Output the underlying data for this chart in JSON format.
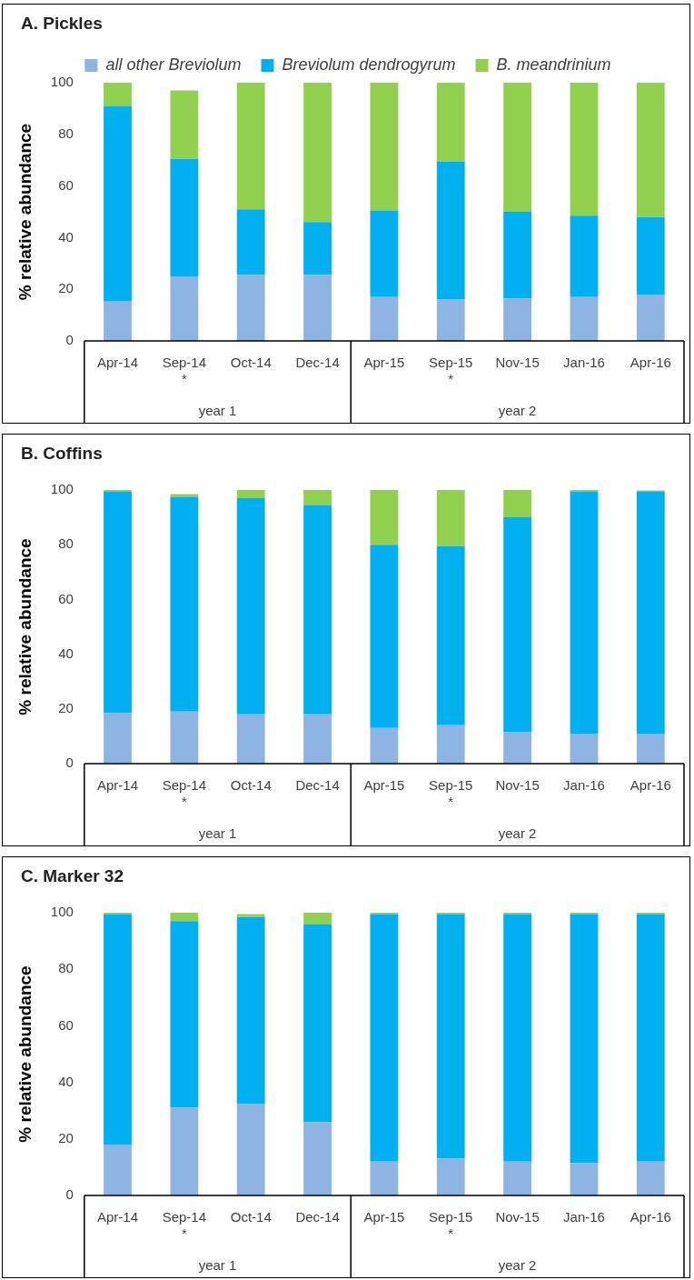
{
  "chart_data": [
    {
      "type": "bar",
      "title": "A. Pickles",
      "ylabel": "% relative abundance",
      "stacked": true,
      "legend": "top",
      "grid": false,
      "categories": [
        "Apr-14",
        "Sep-14\n*",
        "Oct-14",
        "Dec-14",
        "Apr-15",
        "Sep-15\n*",
        "Nov-15",
        "Jan-16",
        "Apr-16"
      ],
      "series": [
        {
          "name": "all other Breviolum",
          "color": "#8eb4e3",
          "values": [
            15.5,
            25,
            25.5,
            25.5,
            17,
            16,
            16.5,
            17,
            18
          ]
        },
        {
          "name": "Breviolum dendrogyrum",
          "color": "#00b0f0",
          "values": [
            75.5,
            45.5,
            25.5,
            20.5,
            33.5,
            53.5,
            33.5,
            31.5,
            30
          ]
        },
        {
          "name": "B. meandrinium",
          "color": "#92d050",
          "values": [
            9,
            26.5,
            49,
            54,
            49.5,
            30.5,
            50,
            51.5,
            52
          ]
        }
      ],
      "ylim": [
        0,
        100
      ],
      "yticks": [
        0,
        20,
        40,
        60,
        80,
        100
      ],
      "annotations": [
        "year 1",
        "year 2"
      ]
    },
    {
      "type": "bar",
      "title": "B. Coffins",
      "ylabel": "% relative abundance",
      "stacked": true,
      "grid": false,
      "categories": [
        "Apr-14",
        "Sep-14\n*",
        "Oct-14",
        "Dec-14",
        "Apr-15",
        "Sep-15\n*",
        "Nov-15",
        "Jan-16",
        "Apr-16"
      ],
      "series": [
        {
          "color": "#8eb4e3",
          "values": [
            18.5,
            19,
            18,
            18,
            13,
            14,
            11.5,
            11,
            11
          ]
        },
        {
          "color": "#00b0f0",
          "values": [
            81,
            78.5,
            79,
            76.5,
            67,
            65.5,
            78.5,
            88.5,
            88.5
          ]
        },
        {
          "color": "#92d050",
          "values": [
            0.5,
            1,
            3,
            5.5,
            20,
            20.5,
            10,
            0.5,
            0.3
          ]
        }
      ],
      "ylim": [
        0,
        100
      ],
      "yticks": [
        0,
        20,
        40,
        60,
        80,
        100
      ],
      "annotations": [
        "year 1",
        "year 2"
      ]
    },
    {
      "type": "bar",
      "title": "C. Marker 32",
      "ylabel": "% relative abundance",
      "stacked": true,
      "grid": false,
      "categories": [
        "Apr-14",
        "Sep-14\n*",
        "Oct-14",
        "Dec-14",
        "Apr-15",
        "Sep-15\n*",
        "Nov-15",
        "Jan-16",
        "Apr-16"
      ],
      "series": [
        {
          "color": "#8eb4e3",
          "values": [
            18,
            31,
            32.5,
            26,
            12,
            13,
            12,
            11.5,
            12
          ]
        },
        {
          "color": "#00b0f0",
          "values": [
            81.5,
            66,
            66,
            70,
            87.5,
            86.5,
            87.5,
            88,
            87.5
          ]
        },
        {
          "color": "#92d050",
          "values": [
            0.5,
            3,
            1,
            4,
            0.5,
            0.5,
            0.5,
            0.5,
            0.5
          ]
        }
      ],
      "ylim": [
        0,
        100
      ],
      "yticks": [
        0,
        20,
        40,
        60,
        80,
        100
      ],
      "annotations": [
        "year 1",
        "year 2"
      ]
    }
  ]
}
